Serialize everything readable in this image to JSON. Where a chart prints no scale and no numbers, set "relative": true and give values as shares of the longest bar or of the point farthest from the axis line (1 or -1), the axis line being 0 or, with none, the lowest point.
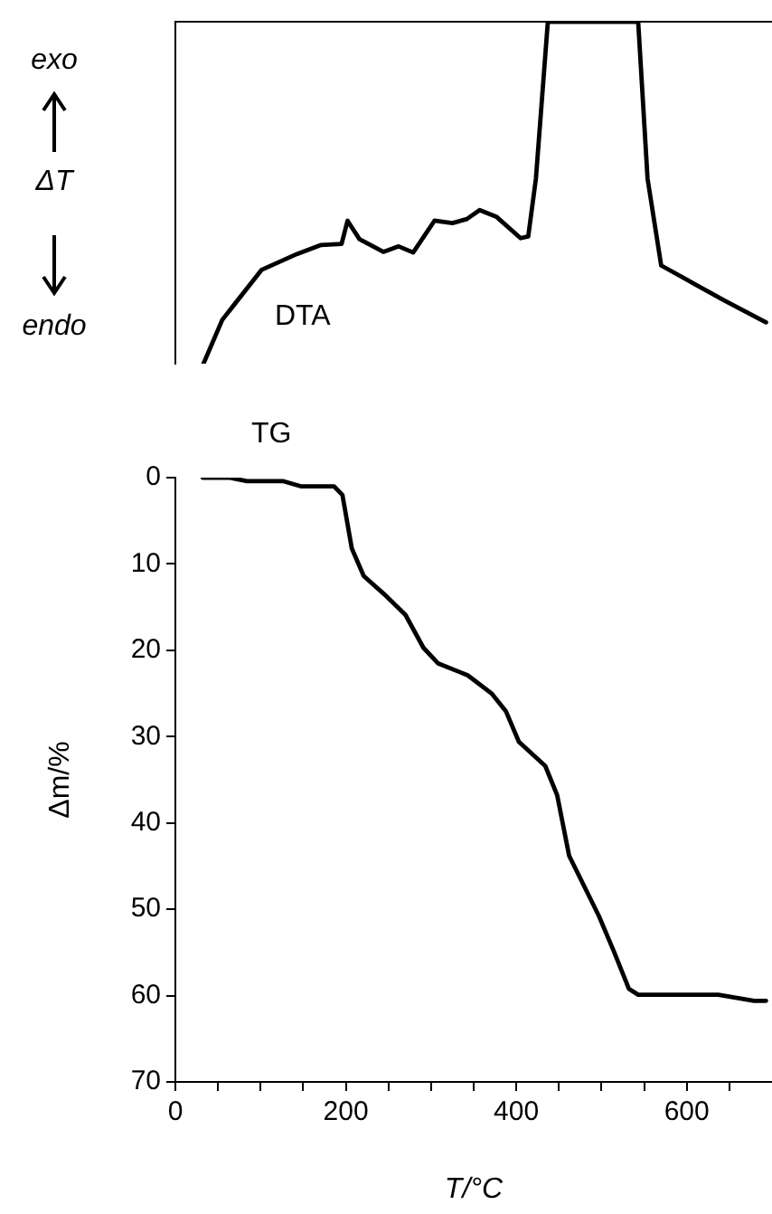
{
  "chart_data": [
    {
      "type": "line",
      "relative": true,
      "xlim": [
        0,
        700
      ],
      "tick_labels": false,
      "ylabel": "ΔT",
      "annotations": [
        "exo",
        "endo"
      ],
      "marker": "none",
      "series": [
        {
          "name": "DTA",
          "color": "#000000",
          "x": [
            33,
            55,
            101,
            143,
            171,
            195,
            202,
            216,
            244,
            262,
            279,
            304,
            325,
            342,
            357,
            377,
            405,
            414,
            423,
            437,
            543,
            554,
            570,
            644,
            693
          ],
          "values": [
            0,
            0.128,
            0.274,
            0.321,
            0.347,
            0.35,
            0.418,
            0.364,
            0.327,
            0.343,
            0.325,
            0.418,
            0.411,
            0.423,
            0.449,
            0.429,
            0.367,
            0.372,
            0.541,
            1,
            1,
            0.541,
            0.287,
            0.185,
            0.121
          ]
        }
      ]
    },
    {
      "type": "line",
      "xlim": [
        0,
        700
      ],
      "ylim": [
        70,
        0
      ],
      "xlabel": "T/°C",
      "ylabel": "Δm/%",
      "marker": "none",
      "xticks": [
        0,
        {
          "value": 50,
          "label": null
        },
        {
          "value": 100,
          "label": null
        },
        {
          "value": 150,
          "label": null
        },
        200,
        {
          "value": 250,
          "label": null
        },
        {
          "value": 300,
          "label": null
        },
        {
          "value": 350,
          "label": null
        },
        400,
        {
          "value": 450,
          "label": null
        },
        {
          "value": 500,
          "label": null
        },
        {
          "value": 550,
          "label": null
        },
        600,
        {
          "value": 650,
          "label": null
        }
      ],
      "yticks": [
        0,
        10,
        20,
        30,
        40,
        50,
        60,
        70
      ],
      "series": [
        {
          "name": "TG",
          "color": "#000000",
          "x": [
            32,
            63,
            84,
            126,
            147,
            186,
            196,
            207,
            221,
            245,
            270,
            291,
            308,
            343,
            371,
            388,
            403,
            434,
            448,
            462,
            497,
            515,
            532,
            543,
            637,
            679,
            693
          ],
          "values": [
            0,
            0,
            0.4,
            0.4,
            1.0,
            1.0,
            2.0,
            8.2,
            11.4,
            13.5,
            15.9,
            19.7,
            21.5,
            22.9,
            25.0,
            27.1,
            30.6,
            33.4,
            36.8,
            43.8,
            50.8,
            55.0,
            59.2,
            59.9,
            59.9,
            60.6,
            60.6
          ]
        }
      ]
    }
  ]
}
